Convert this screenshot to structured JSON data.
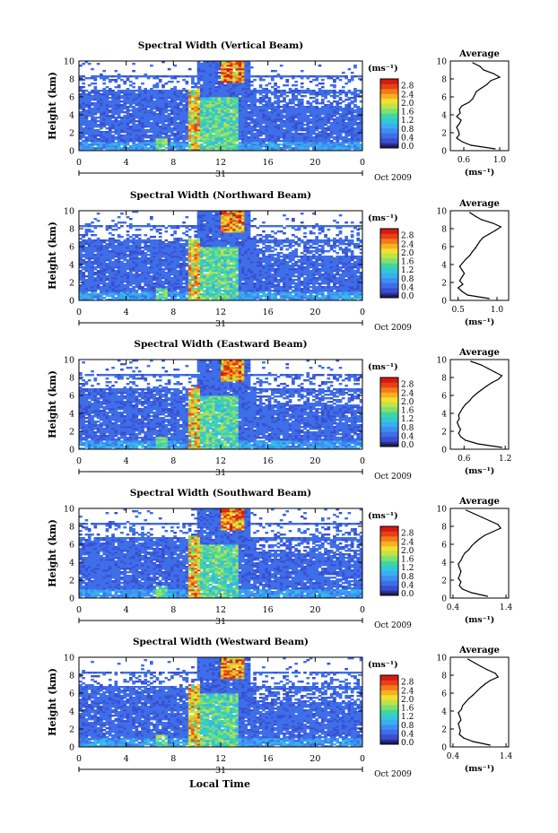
{
  "figure": {
    "xaxis_label": "Local Time",
    "date_label": "Oct 2009",
    "day_label": "31"
  },
  "chart_data": [
    {
      "type": "heatmap",
      "title": "Spectral Width (Vertical Beam)",
      "ylabel": "Height (km)",
      "ylim": [
        0,
        10
      ],
      "xlim": [
        0,
        24
      ],
      "x_ticks": [
        "0",
        "4",
        "8",
        "12",
        "16",
        "20",
        "0"
      ],
      "y_ticks": [
        "0",
        "2",
        "4",
        "6",
        "8",
        "10"
      ],
      "colorbar_unit": "(ms⁻¹)",
      "colorbar_ticks": [
        "0.0",
        "0.4",
        "0.8",
        "1.2",
        "1.6",
        "2.0",
        "2.4",
        "2.8"
      ],
      "profile": {
        "title": "Average",
        "xlabel": "(ms⁻¹)",
        "x_ticks": [
          "0.6",
          "1.0"
        ],
        "xlim": [
          0.45,
          1.1
        ],
        "heights": [
          0.2,
          0.6,
          1.0,
          1.4,
          1.8,
          2.2,
          2.6,
          3.0,
          3.4,
          3.8,
          4.2,
          4.6,
          5.0,
          5.4,
          5.8,
          6.2,
          6.6,
          7.0,
          7.4,
          7.8,
          8.2,
          8.6,
          9.0,
          9.4,
          9.8
        ],
        "values": [
          0.95,
          0.68,
          0.58,
          0.52,
          0.55,
          0.54,
          0.52,
          0.55,
          0.57,
          0.52,
          0.56,
          0.55,
          0.58,
          0.66,
          0.7,
          0.72,
          0.74,
          0.8,
          0.86,
          0.9,
          1.0,
          0.93,
          0.82,
          0.78,
          0.7
        ]
      }
    },
    {
      "type": "heatmap",
      "title": "Spectral Width (Northward Beam)",
      "ylabel": "Height (km)",
      "ylim": [
        0,
        10
      ],
      "xlim": [
        0,
        24
      ],
      "x_ticks": [
        "0",
        "4",
        "8",
        "12",
        "16",
        "20",
        "0"
      ],
      "y_ticks": [
        "0",
        "2",
        "4",
        "6",
        "8",
        "10"
      ],
      "colorbar_unit": "(ms⁻¹)",
      "colorbar_ticks": [
        "0.0",
        "0.4",
        "0.8",
        "1.2",
        "1.6",
        "2.0",
        "2.4",
        "2.8"
      ],
      "profile": {
        "title": "Average",
        "xlabel": "(ms⁻¹)",
        "x_ticks": [
          "0.5",
          "1.0"
        ],
        "xlim": [
          0.4,
          1.15
        ],
        "heights": [
          0.2,
          0.6,
          1.0,
          1.4,
          1.8,
          2.2,
          2.6,
          3.0,
          3.4,
          3.8,
          4.2,
          4.6,
          5.0,
          5.4,
          5.8,
          6.2,
          6.6,
          7.0,
          7.4,
          7.8,
          8.2,
          8.6,
          9.0,
          9.4,
          9.8
        ],
        "values": [
          0.9,
          0.62,
          0.55,
          0.5,
          0.56,
          0.52,
          0.55,
          0.58,
          0.55,
          0.52,
          0.56,
          0.6,
          0.65,
          0.68,
          0.72,
          0.75,
          0.78,
          0.82,
          0.9,
          0.98,
          1.05,
          0.95,
          0.8,
          0.72,
          0.65
        ]
      }
    },
    {
      "type": "heatmap",
      "title": "Spectral Width (Eastward Beam)",
      "ylabel": "Height (km)",
      "ylim": [
        0,
        10
      ],
      "xlim": [
        0,
        24
      ],
      "x_ticks": [
        "0",
        "4",
        "8",
        "12",
        "16",
        "20",
        "0"
      ],
      "y_ticks": [
        "0",
        "2",
        "4",
        "6",
        "8",
        "10"
      ],
      "colorbar_unit": "(ms⁻¹)",
      "colorbar_ticks": [
        "0.0",
        "0.4",
        "0.8",
        "1.2",
        "1.6",
        "2.0",
        "2.4",
        "2.8"
      ],
      "profile": {
        "title": "Average",
        "xlabel": "(ms⁻¹)",
        "x_ticks": [
          "0.6",
          "1.2"
        ],
        "xlim": [
          0.4,
          1.25
        ],
        "heights": [
          0.2,
          0.6,
          1.0,
          1.4,
          1.8,
          2.2,
          2.6,
          3.0,
          3.4,
          3.8,
          4.2,
          4.6,
          5.0,
          5.4,
          5.8,
          6.2,
          6.6,
          7.0,
          7.4,
          7.8,
          8.2,
          8.6,
          9.0,
          9.4,
          9.8
        ],
        "values": [
          1.15,
          0.8,
          0.62,
          0.55,
          0.52,
          0.55,
          0.52,
          0.5,
          0.53,
          0.52,
          0.55,
          0.58,
          0.62,
          0.68,
          0.72,
          0.78,
          0.85,
          0.92,
          1.0,
          1.1,
          1.15,
          1.05,
          0.95,
          0.85,
          0.7
        ]
      }
    },
    {
      "type": "heatmap",
      "title": "Spectral Width (Southward Beam)",
      "ylabel": "Height (km)",
      "ylim": [
        0,
        10
      ],
      "xlim": [
        0,
        24
      ],
      "x_ticks": [
        "0",
        "4",
        "8",
        "12",
        "16",
        "20",
        "0"
      ],
      "y_ticks": [
        "0",
        "2",
        "4",
        "6",
        "8",
        "10"
      ],
      "colorbar_unit": "(ms⁻¹)",
      "colorbar_ticks": [
        "0.0",
        "0.4",
        "0.8",
        "1.2",
        "1.6",
        "2.0",
        "2.4",
        "2.8"
      ],
      "profile": {
        "title": "Average",
        "xlabel": "(ms⁻¹)",
        "x_ticks": [
          "0.4",
          "1.4"
        ],
        "xlim": [
          0.35,
          1.45
        ],
        "heights": [
          0.2,
          0.6,
          1.0,
          1.4,
          1.8,
          2.2,
          2.6,
          3.0,
          3.4,
          3.8,
          4.2,
          4.6,
          5.0,
          5.4,
          5.8,
          6.2,
          6.6,
          7.0,
          7.4,
          7.8,
          8.2,
          8.6,
          9.0,
          9.4,
          9.8
        ],
        "values": [
          1.05,
          0.75,
          0.58,
          0.52,
          0.55,
          0.5,
          0.53,
          0.55,
          0.52,
          0.5,
          0.55,
          0.58,
          0.62,
          0.7,
          0.75,
          0.82,
          0.9,
          1.0,
          1.15,
          1.3,
          1.25,
          1.1,
          0.95,
          0.8,
          0.65
        ]
      }
    },
    {
      "type": "heatmap",
      "title": "Spectral Width (Westward Beam)",
      "ylabel": "Height (km)",
      "ylim": [
        0,
        10
      ],
      "xlim": [
        0,
        24
      ],
      "x_ticks": [
        "0",
        "4",
        "8",
        "12",
        "16",
        "20",
        "0"
      ],
      "y_ticks": [
        "0",
        "2",
        "4",
        "6",
        "8",
        "10"
      ],
      "colorbar_unit": "(ms⁻¹)",
      "colorbar_ticks": [
        "0.0",
        "0.4",
        "0.8",
        "1.2",
        "1.6",
        "2.0",
        "2.4",
        "2.8"
      ],
      "profile": {
        "title": "Average",
        "xlabel": "(ms⁻¹)",
        "x_ticks": [
          "0.4",
          "1.4"
        ],
        "xlim": [
          0.35,
          1.45
        ],
        "heights": [
          0.2,
          0.6,
          1.0,
          1.4,
          1.8,
          2.2,
          2.6,
          3.0,
          3.4,
          3.8,
          4.2,
          4.6,
          5.0,
          5.4,
          5.8,
          6.2,
          6.6,
          7.0,
          7.4,
          7.8,
          8.2,
          8.6,
          9.0,
          9.4,
          9.8
        ],
        "values": [
          1.1,
          0.78,
          0.6,
          0.52,
          0.54,
          0.52,
          0.5,
          0.55,
          0.53,
          0.5,
          0.56,
          0.58,
          0.64,
          0.7,
          0.78,
          0.85,
          0.92,
          1.0,
          1.1,
          1.25,
          1.2,
          1.05,
          0.92,
          0.8,
          0.68
        ]
      }
    }
  ]
}
